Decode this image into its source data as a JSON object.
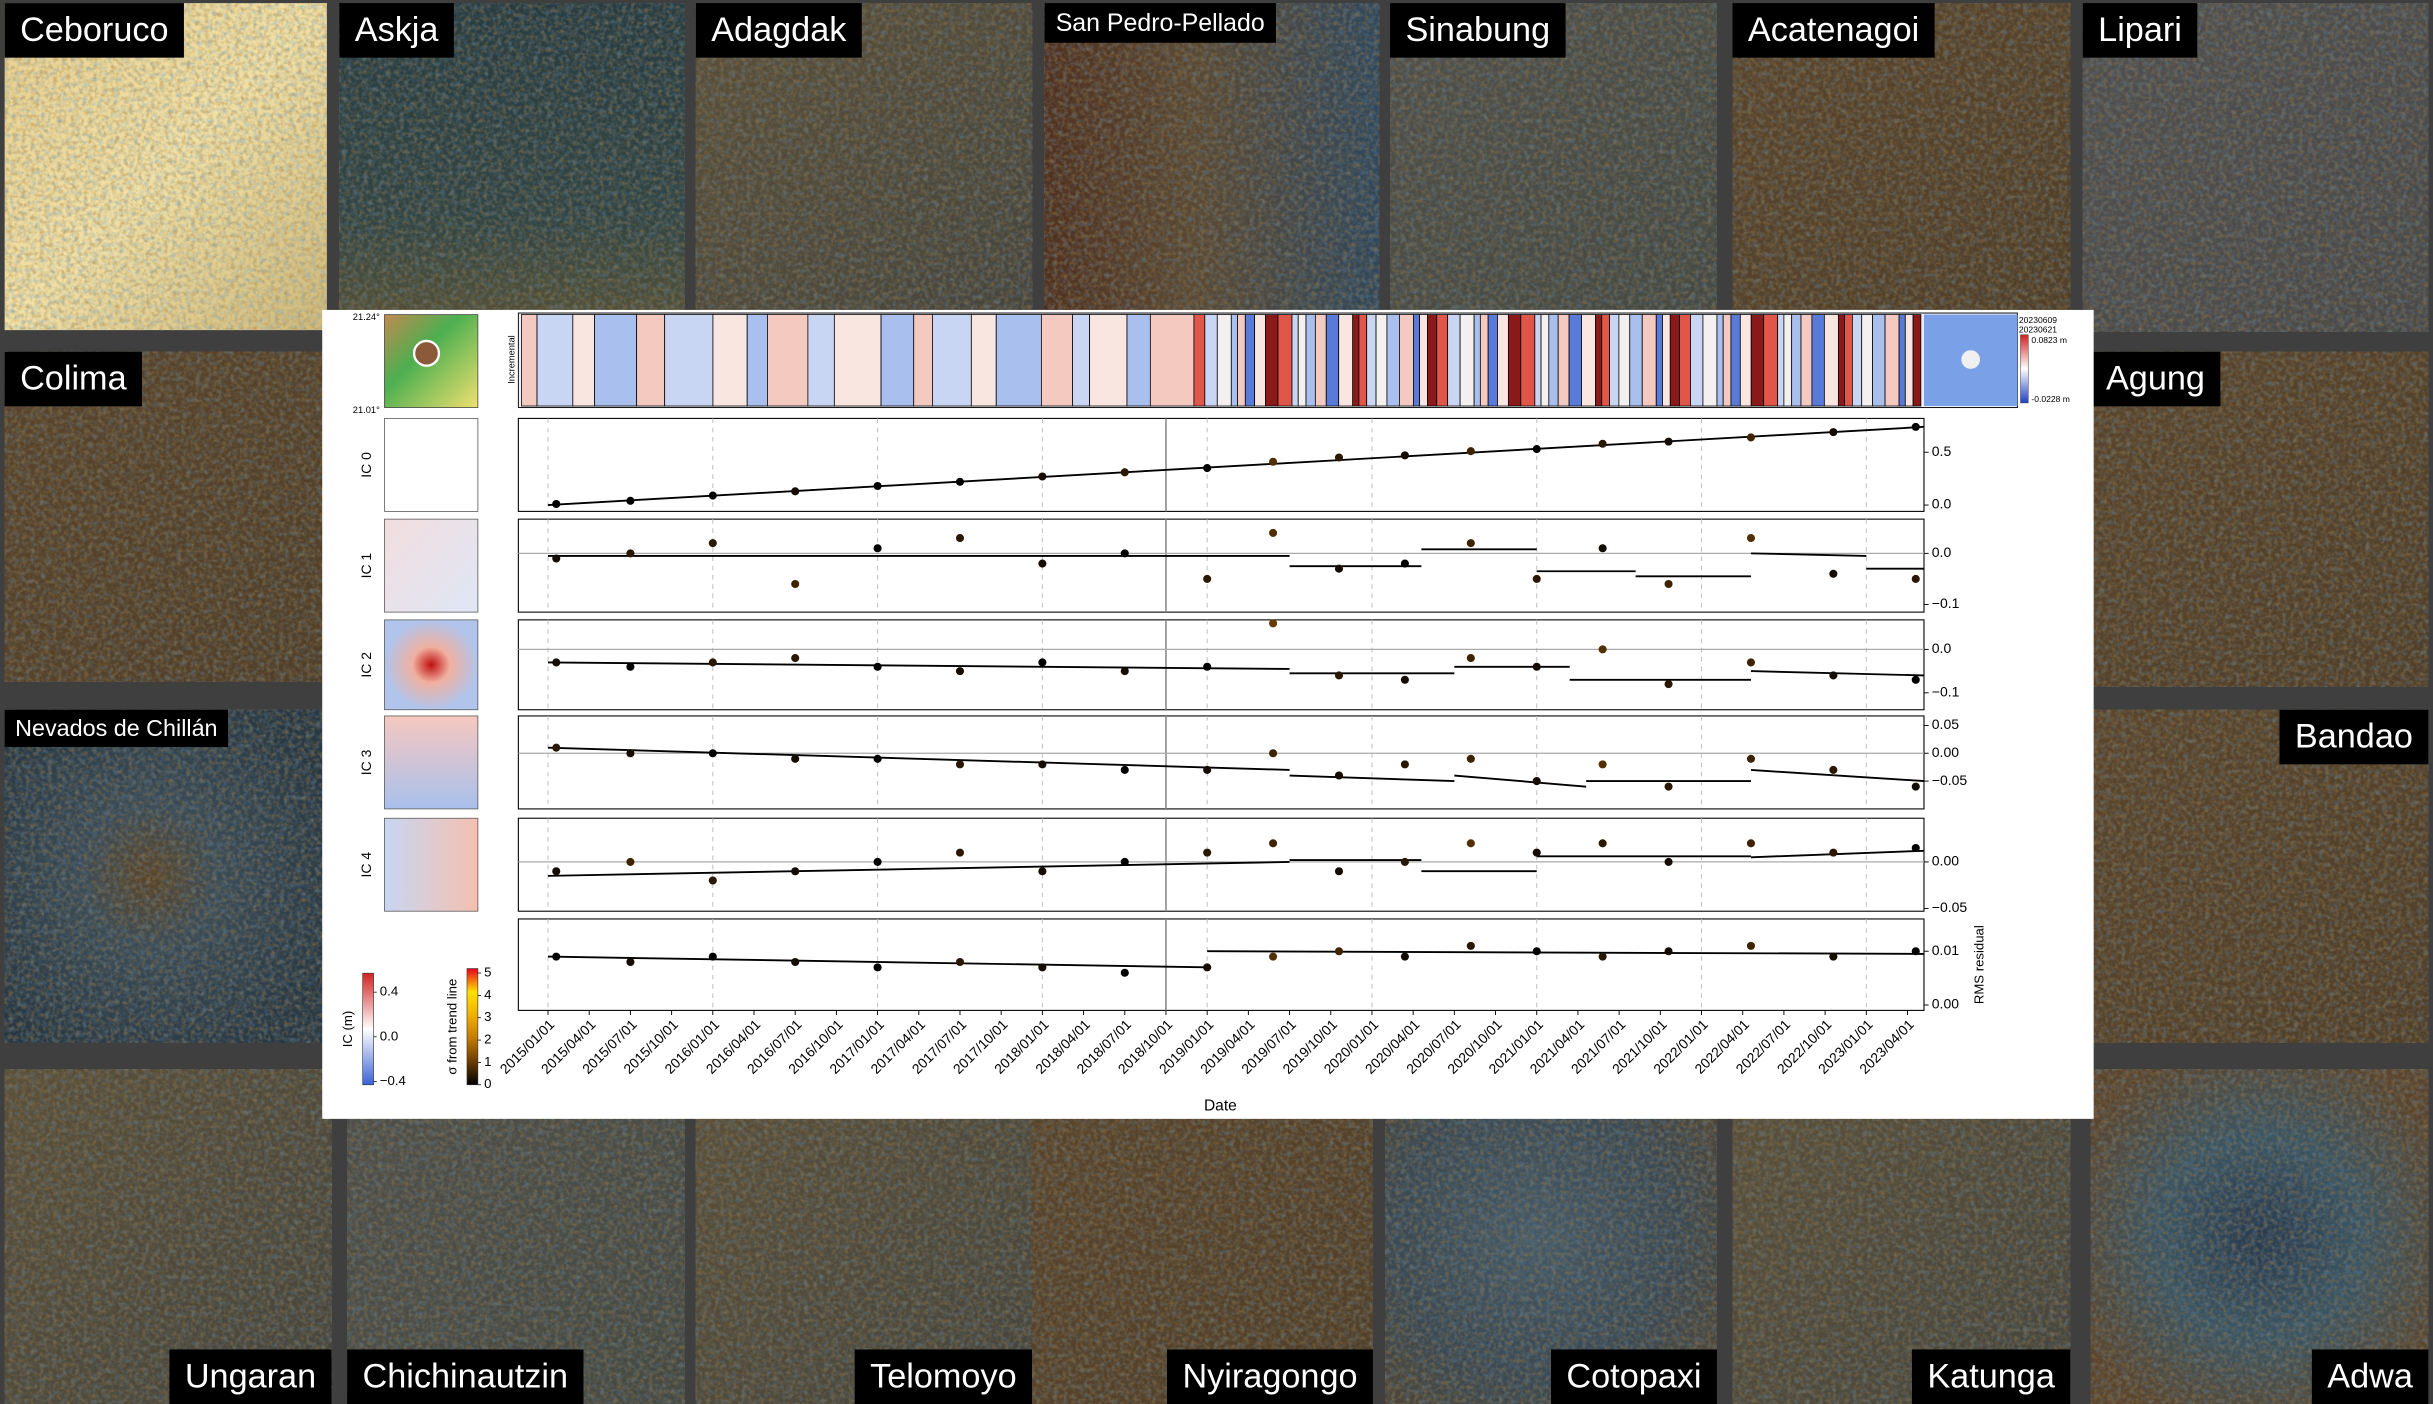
{
  "tiles": [
    {
      "name": "Ceboruco"
    },
    {
      "name": "Askja"
    },
    {
      "name": "Adagdak"
    },
    {
      "name": "San Pedro-Pellado"
    },
    {
      "name": "Sinabung"
    },
    {
      "name": "Acatenagoi"
    },
    {
      "name": "Lipari"
    },
    {
      "name": "Colima"
    },
    {
      "name": "Nevados de Chillán"
    },
    {
      "name": "Agung"
    },
    {
      "name": "Bandao"
    },
    {
      "name": "Ungaran"
    },
    {
      "name": "Chichinautzin"
    },
    {
      "name": "Telomoyo"
    },
    {
      "name": "Nyiragongo"
    },
    {
      "name": "Cotopaxi"
    },
    {
      "name": "Katunga"
    },
    {
      "name": "Adwa"
    }
  ],
  "chart_data": {
    "type": "scatter",
    "xlabel": "Date",
    "xlim": [
      2014.82,
      2023.35
    ],
    "xticks": [
      {
        "value": 2015,
        "label": "2015/01/01"
      },
      {
        "value": 2015.25,
        "label": "2015/04/01"
      },
      {
        "value": 2015.5,
        "label": "2015/07/01"
      },
      {
        "value": 2015.75,
        "label": "2015/10/01"
      },
      {
        "value": 2016,
        "label": "2016/01/01"
      },
      {
        "value": 2016.25,
        "label": "2016/04/01"
      },
      {
        "value": 2016.5,
        "label": "2016/07/01"
      },
      {
        "value": 2016.75,
        "label": "2016/10/01"
      },
      {
        "value": 2017,
        "label": "2017/01/01"
      },
      {
        "value": 2017.25,
        "label": "2017/04/01"
      },
      {
        "value": 2017.5,
        "label": "2017/07/01"
      },
      {
        "value": 2017.75,
        "label": "2017/10/01"
      },
      {
        "value": 2018,
        "label": "2018/01/01"
      },
      {
        "value": 2018.25,
        "label": "2018/04/01"
      },
      {
        "value": 2018.5,
        "label": "2018/07/01"
      },
      {
        "value": 2018.75,
        "label": "2018/10/01"
      },
      {
        "value": 2019,
        "label": "2019/01/01"
      },
      {
        "value": 2019.25,
        "label": "2019/04/01"
      },
      {
        "value": 2019.5,
        "label": "2019/07/01"
      },
      {
        "value": 2019.75,
        "label": "2019/10/01"
      },
      {
        "value": 2020,
        "label": "2020/01/01"
      },
      {
        "value": 2020.25,
        "label": "2020/04/01"
      },
      {
        "value": 2020.5,
        "label": "2020/07/01"
      },
      {
        "value": 2020.75,
        "label": "2020/10/01"
      },
      {
        "value": 2021,
        "label": "2021/01/01"
      },
      {
        "value": 2021.25,
        "label": "2021/04/01"
      },
      {
        "value": 2021.5,
        "label": "2021/07/01"
      },
      {
        "value": 2021.75,
        "label": "2021/10/01"
      },
      {
        "value": 2022,
        "label": "2022/01/01"
      },
      {
        "value": 2022.25,
        "label": "2022/04/01"
      },
      {
        "value": 2022.5,
        "label": "2022/07/01"
      },
      {
        "value": 2022.75,
        "label": "2022/10/01"
      },
      {
        "value": 2023,
        "label": "2023/01/01"
      },
      {
        "value": 2023.25,
        "label": "2023/04/01"
      }
    ],
    "x": [
      2015.05,
      2015.5,
      2016.0,
      2016.5,
      2017.0,
      2017.5,
      2018.0,
      2018.5,
      2019.0,
      2019.4,
      2019.8,
      2020.2,
      2020.6,
      2021.0,
      2021.4,
      2021.8,
      2022.3,
      2022.8,
      2023.3
    ],
    "panels": [
      {
        "label": "IC 0",
        "ylim": [
          -0.06,
          0.82
        ],
        "yticks": [
          {
            "value": 0,
            "label": "0.0"
          },
          0.5
        ],
        "values": [
          0.01,
          0.04,
          0.09,
          0.13,
          0.18,
          0.22,
          0.27,
          0.31,
          0.35,
          0.41,
          0.45,
          0.47,
          0.51,
          0.53,
          0.58,
          0.6,
          0.64,
          0.69,
          0.74
        ],
        "sigma": [
          0,
          0,
          0,
          1,
          0,
          0,
          1,
          2,
          0,
          4,
          2,
          1,
          3,
          0,
          2,
          1,
          3,
          1,
          0
        ],
        "trend": [
          {
            "x": [
              2015.0,
              2023.35
            ],
            "values": [
              0.0,
              0.74
            ]
          }
        ]
      },
      {
        "label": "IC 1",
        "ylim": [
          -0.115,
          0.067
        ],
        "yticks": [
          {
            "value": 0,
            "label": "0.0"
          },
          {
            "value": -0.1,
            "label": "−0.1"
          }
        ],
        "values": [
          -0.01,
          0.0,
          0.02,
          -0.06,
          0.01,
          0.03,
          -0.02,
          0.0,
          -0.05,
          0.04,
          -0.03,
          -0.02,
          0.02,
          -0.05,
          0.01,
          -0.06,
          0.03,
          -0.04,
          -0.05
        ],
        "sigma": [
          1,
          2,
          2,
          3,
          0,
          2,
          1,
          0,
          2,
          4,
          1,
          0,
          3,
          2,
          1,
          3,
          4,
          1,
          2
        ],
        "trend": [
          {
            "x": [
              2015.0,
              2019.5
            ],
            "values": [
              -0.005,
              -0.005
            ]
          },
          {
            "x": [
              2019.5,
              2020.3
            ],
            "values": [
              -0.025,
              -0.025
            ]
          },
          {
            "x": [
              2020.3,
              2021.0
            ],
            "values": [
              0.008,
              0.008
            ]
          },
          {
            "x": [
              2021.0,
              2021.6
            ],
            "values": [
              -0.035,
              -0.035
            ]
          },
          {
            "x": [
              2021.6,
              2022.3
            ],
            "values": [
              -0.045,
              -0.045
            ]
          },
          {
            "x": [
              2022.3,
              2023.0
            ],
            "values": [
              0.0,
              -0.005
            ]
          },
          {
            "x": [
              2023.0,
              2023.35
            ],
            "values": [
              -0.03,
              -0.03
            ]
          }
        ]
      },
      {
        "label": "IC 2",
        "ylim": [
          -0.139,
          0.068
        ],
        "yticks": [
          {
            "value": 0,
            "label": "0.0"
          },
          {
            "value": -0.1,
            "label": "−0.1"
          }
        ],
        "values": [
          -0.03,
          -0.04,
          -0.03,
          -0.02,
          -0.04,
          -0.05,
          -0.03,
          -0.05,
          -0.04,
          0.06,
          -0.06,
          -0.07,
          -0.02,
          -0.04,
          0.0,
          -0.08,
          -0.03,
          -0.06,
          -0.07
        ],
        "sigma": [
          1,
          0,
          2,
          2,
          0,
          1,
          0,
          1,
          0,
          5,
          2,
          1,
          3,
          1,
          4,
          2,
          3,
          1,
          0
        ],
        "trend": [
          {
            "x": [
              2015.0,
              2019.5
            ],
            "values": [
              -0.03,
              -0.045
            ]
          },
          {
            "x": [
              2019.5,
              2020.5
            ],
            "values": [
              -0.055,
              -0.055
            ]
          },
          {
            "x": [
              2020.5,
              2021.2
            ],
            "values": [
              -0.04,
              -0.04
            ]
          },
          {
            "x": [
              2021.2,
              2022.3
            ],
            "values": [
              -0.07,
              -0.07
            ]
          },
          {
            "x": [
              2022.3,
              2023.35
            ],
            "values": [
              -0.05,
              -0.06
            ]
          }
        ]
      },
      {
        "label": "IC 3",
        "ylim": [
          -0.1,
          0.067
        ],
        "yticks": [
          0.05,
          {
            "value": 0,
            "label": "0.00"
          },
          {
            "value": -0.05,
            "label": "−0.05"
          }
        ],
        "values": [
          0.01,
          0.0,
          0.0,
          -0.01,
          -0.01,
          -0.02,
          -0.02,
          -0.03,
          -0.03,
          0.0,
          -0.04,
          -0.02,
          -0.01,
          -0.05,
          -0.02,
          -0.06,
          -0.01,
          -0.03,
          -0.06
        ],
        "sigma": [
          2,
          1,
          0,
          1,
          0,
          2,
          1,
          0,
          1,
          3,
          1,
          2,
          3,
          1,
          4,
          2,
          3,
          2,
          1
        ],
        "trend": [
          {
            "x": [
              2015.0,
              2019.5
            ],
            "values": [
              0.01,
              -0.03
            ]
          },
          {
            "x": [
              2019.5,
              2020.5
            ],
            "values": [
              -0.04,
              -0.05
            ]
          },
          {
            "x": [
              2020.5,
              2021.3
            ],
            "values": [
              -0.04,
              -0.06
            ]
          },
          {
            "x": [
              2021.3,
              2022.3
            ],
            "values": [
              -0.05,
              -0.05
            ]
          },
          {
            "x": [
              2022.3,
              2023.35
            ],
            "values": [
              -0.03,
              -0.05
            ]
          }
        ]
      },
      {
        "label": "IC 4",
        "ylim": [
          -0.053,
          0.047
        ],
        "yticks": [
          {
            "value": 0,
            "label": "0.00"
          },
          {
            "value": -0.05,
            "label": "−0.05"
          }
        ],
        "values": [
          -0.01,
          0.0,
          -0.02,
          -0.01,
          0.0,
          0.01,
          -0.01,
          0.0,
          0.01,
          0.02,
          -0.01,
          0.0,
          0.02,
          0.01,
          0.02,
          0.0,
          0.02,
          0.01,
          0.015
        ],
        "sigma": [
          1,
          3,
          2,
          1,
          0,
          2,
          1,
          0,
          2,
          3,
          1,
          2,
          4,
          1,
          2,
          1,
          3,
          2,
          0
        ],
        "trend": [
          {
            "x": [
              2015.0,
              2019.5
            ],
            "values": [
              -0.015,
              0.0
            ]
          },
          {
            "x": [
              2019.5,
              2020.3
            ],
            "values": [
              0.002,
              0.002
            ]
          },
          {
            "x": [
              2020.3,
              2021.0
            ],
            "values": [
              -0.01,
              -0.01
            ]
          },
          {
            "x": [
              2021.0,
              2022.3
            ],
            "values": [
              0.006,
              0.006
            ]
          },
          {
            "x": [
              2022.3,
              2023.35
            ],
            "values": [
              0.005,
              0.012
            ]
          }
        ]
      },
      {
        "label": "RMS residual",
        "ylim": [
          -0.001,
          0.016
        ],
        "yticks": [
          0.01,
          {
            "value": 0,
            "label": "0.00"
          }
        ],
        "values": [
          0.009,
          0.008,
          0.009,
          0.008,
          0.007,
          0.008,
          0.007,
          0.006,
          0.007,
          0.009,
          0.01,
          0.009,
          0.011,
          0.01,
          0.009,
          0.01,
          0.011,
          0.009,
          0.01
        ],
        "sigma": [
          0,
          1,
          0,
          1,
          0,
          2,
          1,
          0,
          1,
          4,
          3,
          1,
          2,
          0,
          2,
          1,
          3,
          1,
          0
        ],
        "trend": [
          {
            "x": [
              2015.0,
              2019.0
            ],
            "values": [
              0.009,
              0.007
            ]
          },
          {
            "x": [
              2019.0,
              2023.35
            ],
            "values": [
              0.01,
              0.0095
            ]
          }
        ]
      }
    ],
    "map_ticks": [
      "21.24°",
      "21.01°"
    ],
    "strip": {
      "label": "Incremental",
      "dates": [
        "20230609",
        "20230621"
      ],
      "range": [
        "0.0823 m",
        "-0.0228 m"
      ]
    },
    "colorbars": [
      {
        "label": "IC (m)",
        "lim": [
          -0.43,
          0.57
        ],
        "ticks": [
          0.4,
          {
            "value": 0,
            "label": "0.0"
          },
          {
            "value": -0.4,
            "label": "−0.4"
          }
        ],
        "colors": [
          "#3b63d8",
          "#ffffff",
          "#d22222"
        ]
      },
      {
        "label": "σ from trend line",
        "lim": [
          0,
          5.2
        ],
        "ticks": [
          0,
          1,
          2,
          3,
          4,
          5
        ],
        "colors": [
          "#000000",
          "#6b3d00",
          "#c27a00",
          "#f2b100",
          "#ffe000",
          "#e8001c"
        ]
      }
    ]
  }
}
